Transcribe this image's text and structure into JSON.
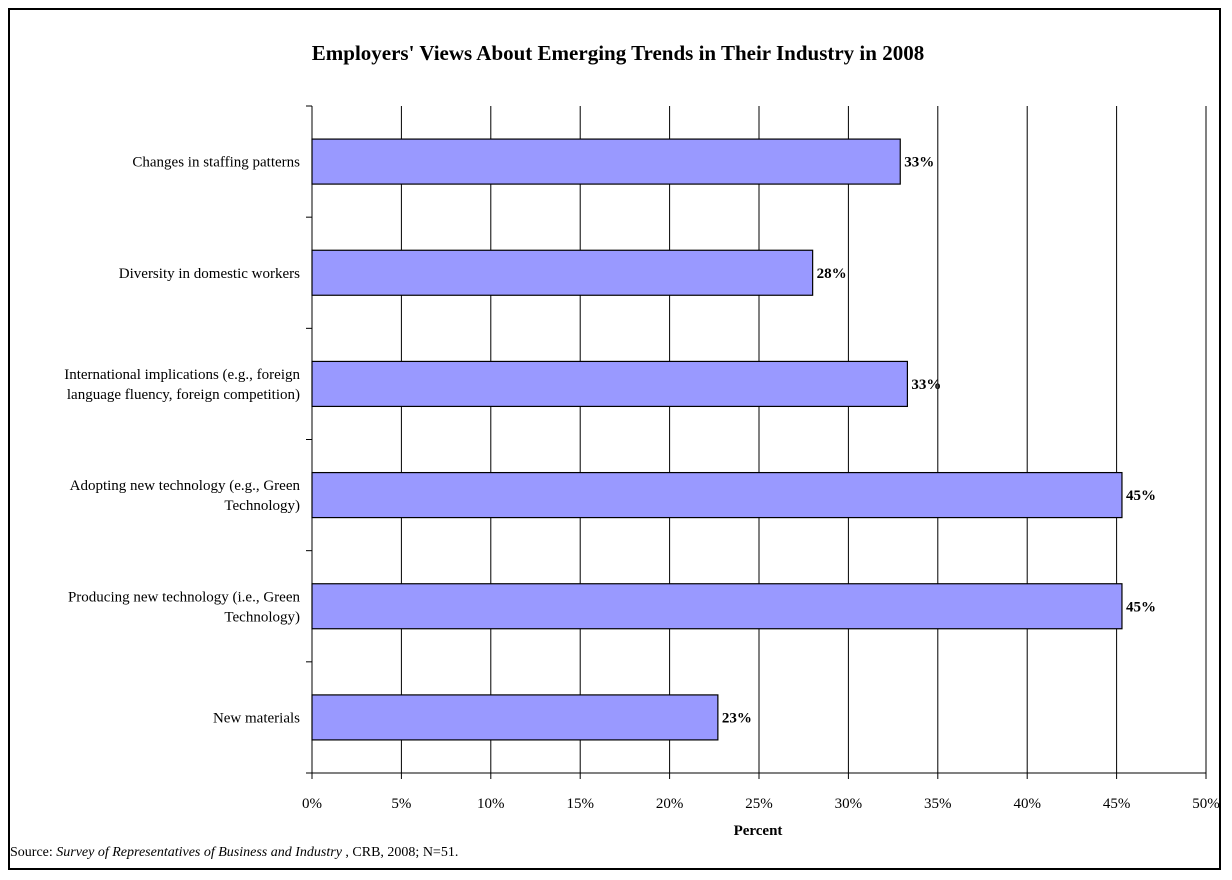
{
  "chart_data": {
    "type": "bar",
    "orientation": "horizontal",
    "title": "Employers' Views About Emerging Trends in Their Industry in 2008",
    "xlabel": "Percent",
    "ylabel": "",
    "xlim": [
      0,
      50
    ],
    "x_ticks": [
      0,
      5,
      10,
      15,
      20,
      25,
      30,
      35,
      40,
      45,
      50
    ],
    "x_tick_labels": [
      "0%",
      "5%",
      "10%",
      "15%",
      "20%",
      "25%",
      "30%",
      "35%",
      "40%",
      "45%",
      "50%"
    ],
    "grid": "vertical",
    "legend": "none",
    "bar_color": "#9999ff",
    "categories": [
      [
        "Changes in staffing patterns"
      ],
      [
        "Diversity in domestic workers"
      ],
      [
        "International implications (e.g., foreign",
        "language fluency, foreign competition)"
      ],
      [
        "Adopting new technology (e.g., Green",
        "Technology)"
      ],
      [
        "Producing new technology (i.e., Green",
        "Technology)"
      ],
      [
        "New materials"
      ]
    ],
    "values": [
      32.9,
      28.0,
      33.3,
      45.3,
      45.3,
      22.7
    ],
    "data_labels": [
      "33%",
      "28%",
      "33%",
      "45%",
      "45%",
      "23%"
    ]
  },
  "source": {
    "prefix": "Source:  ",
    "italic": "Survey of Representatives of Business and Industry",
    "suffix": " , CRB, 2008; N=51."
  }
}
